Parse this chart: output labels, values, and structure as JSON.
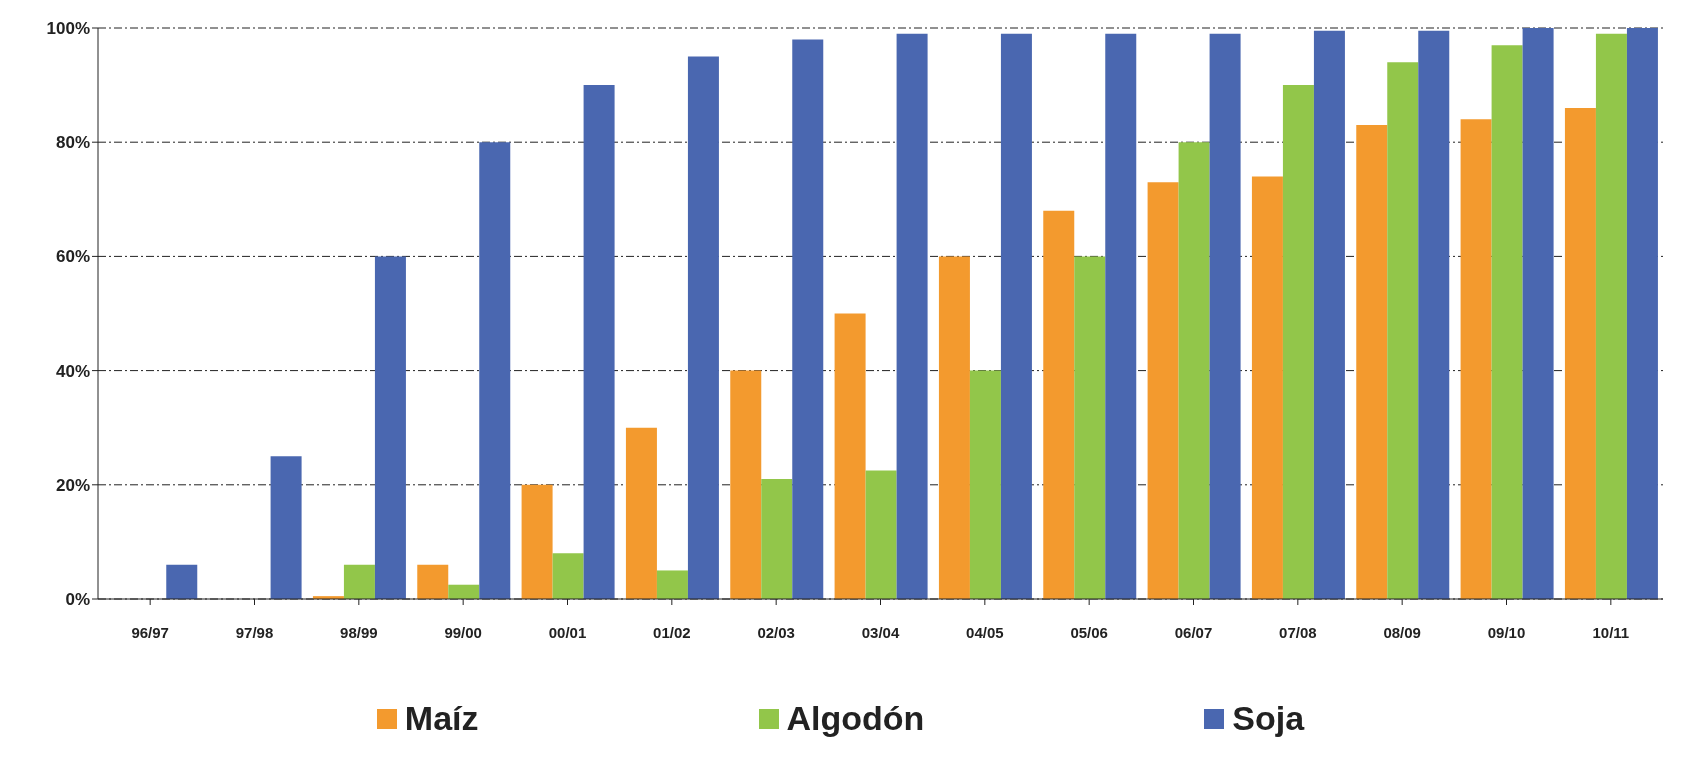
{
  "chart_data": {
    "type": "bar",
    "categories": [
      "96/97",
      "97/98",
      "98/99",
      "99/00",
      "00/01",
      "01/02",
      "02/03",
      "03/04",
      "04/05",
      "05/06",
      "06/07",
      "07/08",
      "08/09",
      "09/10",
      "10/11"
    ],
    "series": [
      {
        "name": "Maíz",
        "color": "#f39a2e",
        "values": [
          null,
          null,
          0.5,
          6,
          20,
          30,
          40,
          50,
          60,
          68,
          73,
          74,
          83,
          84,
          86
        ]
      },
      {
        "name": "Algodón",
        "color": "#92c64a",
        "values": [
          null,
          null,
          6,
          2.5,
          8,
          5,
          21,
          22.5,
          40,
          60,
          80,
          90,
          94,
          97,
          99
        ]
      },
      {
        "name": "Soja",
        "color": "#4a67b0",
        "values": [
          6,
          25,
          60,
          80,
          90,
          95,
          98,
          99,
          99,
          99,
          99,
          99.5,
          99.5,
          100,
          100
        ]
      }
    ],
    "ylim": [
      0,
      100
    ],
    "yticks": [
      {
        "value": 0,
        "label": "0%"
      },
      {
        "value": 20,
        "label": "20%"
      },
      {
        "value": 40,
        "label": "40%"
      },
      {
        "value": 60,
        "label": "60%"
      },
      {
        "value": 80,
        "label": "80%"
      },
      {
        "value": 100,
        "label": "100%"
      }
    ],
    "grid": "y",
    "legend": "bottom"
  }
}
